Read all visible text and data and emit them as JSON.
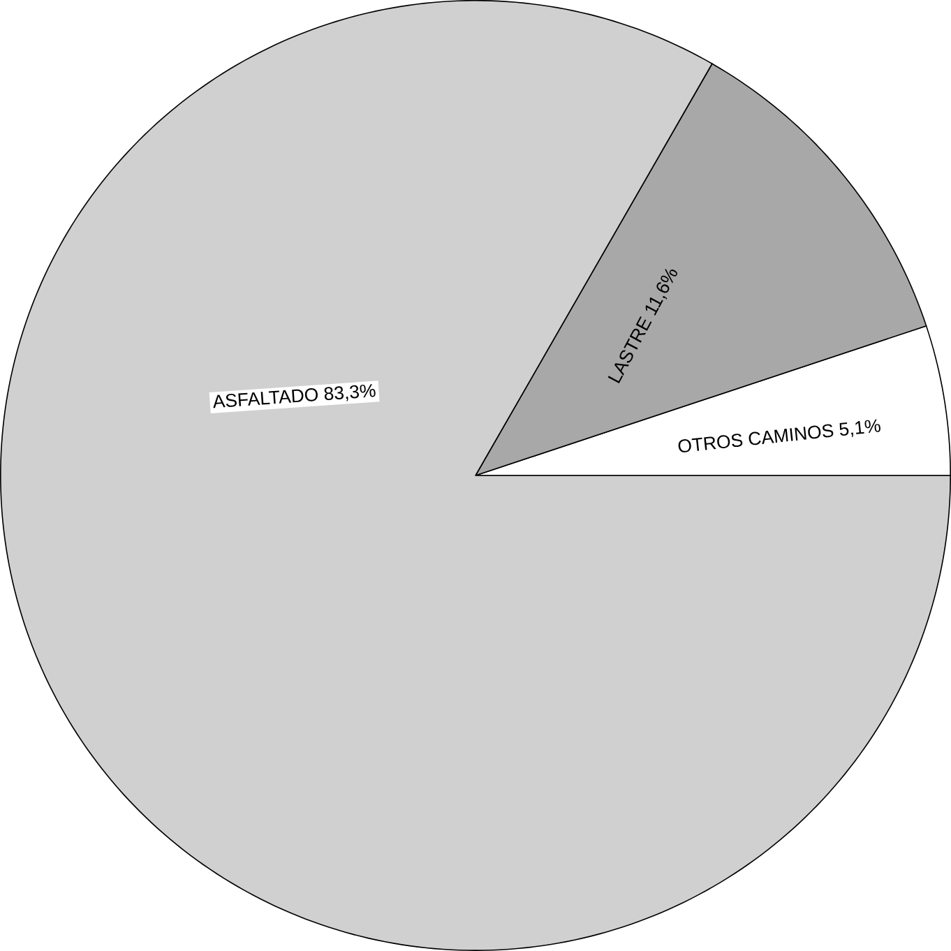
{
  "chart_data": {
    "type": "pie",
    "categories": [
      "OTROS CAMINOS",
      "LASTRE",
      "ASFALTADO"
    ],
    "values": [
      5.1,
      11.6,
      83.3
    ],
    "value_labels": [
      "5,1%",
      "11,6%",
      "83,3%"
    ],
    "colors": [
      "#ffffff",
      "#a8a8a8",
      "#d0d0d0"
    ]
  }
}
